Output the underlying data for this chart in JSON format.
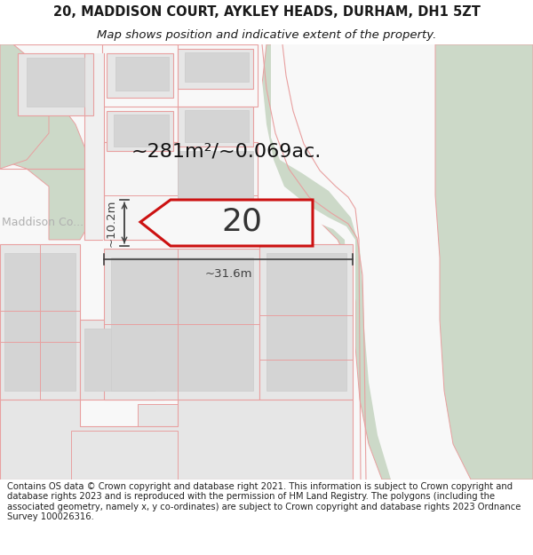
{
  "title_line1": "20, MADDISON COURT, AYKLEY HEADS, DURHAM, DH1 5ZT",
  "title_line2": "Map shows position and indicative extent of the property.",
  "area_label": "~281m²/~0.069ac.",
  "number_label": "20",
  "dim_width": "~31.6m",
  "dim_height": "~10.2m",
  "road_label": "Maddison Co...",
  "footer_text": "Contains OS data © Crown copyright and database right 2021. This information is subject to Crown copyright and database rights 2023 and is reproduced with the permission of HM Land Registry. The polygons (including the associated geometry, namely x, y co-ordinates) are subject to Crown copyright and database rights 2023 Ordnance Survey 100026316.",
  "bg_color": "#ffffff",
  "map_bg": "#f8f8f8",
  "green_color": "#ccd9c8",
  "pink_color": "#e8a0a0",
  "red_color": "#cc1111",
  "bld_light": "#e6e6e6",
  "bld_mid": "#d4d4d4",
  "dim_color": "#404040",
  "text_dark": "#1a1a1a",
  "text_gray": "#999999",
  "title_fs": 10.5,
  "subtitle_fs": 9.5,
  "area_fs": 16,
  "number_fs": 26,
  "dim_fs": 9.5,
  "footer_fs": 7.2,
  "road_fs": 9
}
